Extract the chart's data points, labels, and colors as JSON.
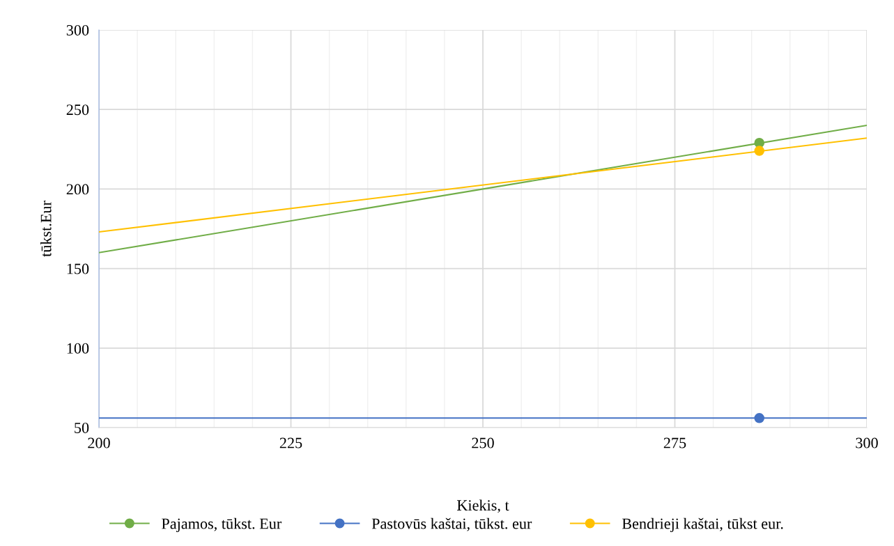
{
  "chart_data": {
    "type": "line",
    "xlabel": "Kiekis, t",
    "ylabel": "tūkst.Eur",
    "xlim": [
      200,
      300
    ],
    "ylim": [
      50,
      300
    ],
    "xticks": [
      200,
      225,
      250,
      275,
      300
    ],
    "yticks": [
      50,
      100,
      150,
      200,
      250,
      300
    ],
    "grid": true,
    "legend": "bottom",
    "marker": "circle",
    "series": [
      {
        "name": "Pajamos, tūkst. Eur",
        "color": "#70ad47",
        "marker": "none",
        "x": [
          200,
          300
        ],
        "values": [
          160,
          240
        ]
      },
      {
        "name": "Pastovūs kaštai, tūkst. eur",
        "color": "#4472c4",
        "marker": "none",
        "x": [
          200,
          300
        ],
        "values": [
          56,
          56
        ]
      },
      {
        "name": "Bendrieji kaštai, tūkst eur.",
        "color": "#ffc000",
        "marker": "none",
        "x": [
          200,
          300
        ],
        "values": [
          173,
          232
        ]
      },
      {
        "type": "scatter",
        "color": "#70ad47",
        "x": [
          286
        ],
        "values": [
          229
        ]
      },
      {
        "type": "scatter",
        "color": "#4472c4",
        "x": [
          286
        ],
        "values": [
          56
        ]
      },
      {
        "type": "scatter",
        "color": "#ffc000",
        "x": [
          286
        ],
        "values": [
          224
        ]
      }
    ]
  }
}
